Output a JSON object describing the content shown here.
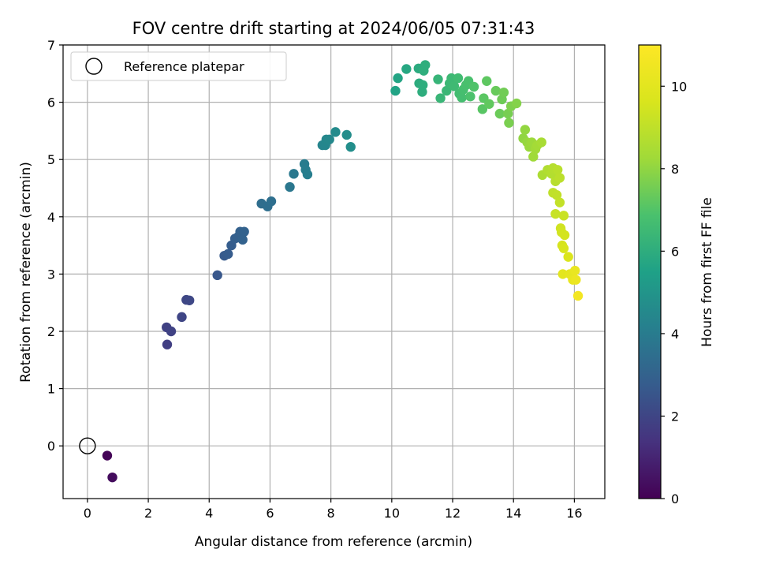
{
  "chart_data": {
    "type": "scatter",
    "title": "FOV centre drift starting at 2024/06/05 07:31:43",
    "xlabel": "Angular distance from reference (arcmin)",
    "ylabel": "Rotation from reference (arcmin)",
    "xlim": [
      -0.8,
      17.0
    ],
    "ylim": [
      -0.92,
      7.0
    ],
    "xticks": [
      0,
      2,
      4,
      6,
      8,
      10,
      12,
      14,
      16
    ],
    "yticks": [
      0,
      1,
      2,
      3,
      4,
      5,
      6,
      7
    ],
    "grid": true,
    "legend": {
      "placement": "top-left",
      "entries": [
        "Reference platepar"
      ]
    },
    "reference_point": {
      "x": 0,
      "y": 0,
      "label": "Reference platepar"
    },
    "colorbar": {
      "label": "Hours from first FF file",
      "range": [
        0,
        11
      ],
      "ticks": [
        0,
        2,
        4,
        6,
        8,
        10
      ],
      "colormap": "viridis"
    },
    "points": [
      {
        "x": 0.65,
        "y": -0.17,
        "c": 0.1
      },
      {
        "x": 0.82,
        "y": -0.55,
        "c": 0.3
      },
      {
        "x": 2.62,
        "y": 1.77,
        "c": 1.8
      },
      {
        "x": 2.6,
        "y": 2.07,
        "c": 1.85
      },
      {
        "x": 2.75,
        "y": 2.0,
        "c": 1.9
      },
      {
        "x": 3.1,
        "y": 2.25,
        "c": 2.0
      },
      {
        "x": 3.25,
        "y": 2.55,
        "c": 2.05
      },
      {
        "x": 3.35,
        "y": 2.54,
        "c": 2.1
      },
      {
        "x": 4.27,
        "y": 2.98,
        "c": 2.6
      },
      {
        "x": 4.5,
        "y": 3.32,
        "c": 2.7
      },
      {
        "x": 4.62,
        "y": 3.35,
        "c": 2.75
      },
      {
        "x": 4.73,
        "y": 3.5,
        "c": 2.8
      },
      {
        "x": 4.85,
        "y": 3.62,
        "c": 2.85
      },
      {
        "x": 4.95,
        "y": 3.65,
        "c": 2.9
      },
      {
        "x": 5.02,
        "y": 3.74,
        "c": 2.95
      },
      {
        "x": 5.15,
        "y": 3.74,
        "c": 3.0
      },
      {
        "x": 5.1,
        "y": 3.6,
        "c": 3.0
      },
      {
        "x": 5.72,
        "y": 4.23,
        "c": 3.4
      },
      {
        "x": 5.92,
        "y": 4.18,
        "c": 3.45
      },
      {
        "x": 6.04,
        "y": 4.27,
        "c": 3.5
      },
      {
        "x": 6.65,
        "y": 4.52,
        "c": 3.8
      },
      {
        "x": 6.78,
        "y": 4.75,
        "c": 3.85
      },
      {
        "x": 7.13,
        "y": 4.92,
        "c": 4.0
      },
      {
        "x": 7.17,
        "y": 4.82,
        "c": 4.05
      },
      {
        "x": 7.23,
        "y": 4.74,
        "c": 4.1
      },
      {
        "x": 7.72,
        "y": 5.25,
        "c": 4.35
      },
      {
        "x": 7.82,
        "y": 5.25,
        "c": 4.4
      },
      {
        "x": 7.85,
        "y": 5.35,
        "c": 4.45
      },
      {
        "x": 7.95,
        "y": 5.35,
        "c": 4.5
      },
      {
        "x": 8.15,
        "y": 5.48,
        "c": 4.6
      },
      {
        "x": 8.52,
        "y": 5.43,
        "c": 4.7
      },
      {
        "x": 8.65,
        "y": 5.22,
        "c": 4.75
      },
      {
        "x": 10.12,
        "y": 6.2,
        "c": 5.6
      },
      {
        "x": 10.2,
        "y": 6.42,
        "c": 5.65
      },
      {
        "x": 10.48,
        "y": 6.58,
        "c": 5.75
      },
      {
        "x": 10.88,
        "y": 6.59,
        "c": 5.9
      },
      {
        "x": 10.9,
        "y": 6.33,
        "c": 5.95
      },
      {
        "x": 11.0,
        "y": 6.18,
        "c": 6.0
      },
      {
        "x": 11.02,
        "y": 6.3,
        "c": 6.0
      },
      {
        "x": 11.05,
        "y": 6.55,
        "c": 6.05
      },
      {
        "x": 11.1,
        "y": 6.65,
        "c": 6.05
      },
      {
        "x": 11.52,
        "y": 6.4,
        "c": 6.3
      },
      {
        "x": 11.6,
        "y": 6.07,
        "c": 6.35
      },
      {
        "x": 11.8,
        "y": 6.2,
        "c": 6.4
      },
      {
        "x": 11.9,
        "y": 6.33,
        "c": 6.45
      },
      {
        "x": 11.96,
        "y": 6.42,
        "c": 6.5
      },
      {
        "x": 12.05,
        "y": 6.28,
        "c": 6.55
      },
      {
        "x": 12.18,
        "y": 6.42,
        "c": 6.6
      },
      {
        "x": 12.22,
        "y": 6.15,
        "c": 6.65
      },
      {
        "x": 12.3,
        "y": 6.08,
        "c": 6.7
      },
      {
        "x": 12.35,
        "y": 6.22,
        "c": 6.75
      },
      {
        "x": 12.44,
        "y": 6.3,
        "c": 6.8
      },
      {
        "x": 12.52,
        "y": 6.37,
        "c": 6.85
      },
      {
        "x": 12.58,
        "y": 6.1,
        "c": 6.9
      },
      {
        "x": 12.7,
        "y": 6.27,
        "c": 6.95
      },
      {
        "x": 12.98,
        "y": 5.88,
        "c": 7.1
      },
      {
        "x": 13.02,
        "y": 6.07,
        "c": 7.15
      },
      {
        "x": 13.12,
        "y": 6.37,
        "c": 7.2
      },
      {
        "x": 13.2,
        "y": 5.97,
        "c": 7.25
      },
      {
        "x": 13.42,
        "y": 6.2,
        "c": 7.35
      },
      {
        "x": 13.55,
        "y": 5.8,
        "c": 7.4
      },
      {
        "x": 13.62,
        "y": 6.05,
        "c": 7.45
      },
      {
        "x": 13.68,
        "y": 6.17,
        "c": 7.5
      },
      {
        "x": 13.82,
        "y": 5.8,
        "c": 7.6
      },
      {
        "x": 13.85,
        "y": 5.64,
        "c": 7.65
      },
      {
        "x": 13.92,
        "y": 5.93,
        "c": 7.7
      },
      {
        "x": 14.1,
        "y": 5.98,
        "c": 7.8
      },
      {
        "x": 14.32,
        "y": 5.37,
        "c": 8.0
      },
      {
        "x": 14.38,
        "y": 5.52,
        "c": 8.05
      },
      {
        "x": 14.45,
        "y": 5.3,
        "c": 8.1
      },
      {
        "x": 14.52,
        "y": 5.22,
        "c": 8.15
      },
      {
        "x": 14.6,
        "y": 5.3,
        "c": 8.2
      },
      {
        "x": 14.65,
        "y": 5.05,
        "c": 8.25
      },
      {
        "x": 14.72,
        "y": 5.18,
        "c": 8.3
      },
      {
        "x": 14.78,
        "y": 5.25,
        "c": 8.35
      },
      {
        "x": 14.92,
        "y": 5.3,
        "c": 8.45
      },
      {
        "x": 14.95,
        "y": 4.73,
        "c": 8.55
      },
      {
        "x": 15.12,
        "y": 4.82,
        "c": 8.65
      },
      {
        "x": 15.25,
        "y": 4.75,
        "c": 8.7
      },
      {
        "x": 15.3,
        "y": 4.85,
        "c": 8.75
      },
      {
        "x": 15.38,
        "y": 4.62,
        "c": 8.8
      },
      {
        "x": 15.45,
        "y": 4.82,
        "c": 8.85
      },
      {
        "x": 15.52,
        "y": 4.68,
        "c": 8.9
      },
      {
        "x": 15.3,
        "y": 4.42,
        "c": 9.0
      },
      {
        "x": 15.42,
        "y": 4.38,
        "c": 9.05
      },
      {
        "x": 15.52,
        "y": 4.25,
        "c": 9.1
      },
      {
        "x": 15.38,
        "y": 4.05,
        "c": 9.2
      },
      {
        "x": 15.65,
        "y": 4.02,
        "c": 9.25
      },
      {
        "x": 15.55,
        "y": 3.8,
        "c": 9.4
      },
      {
        "x": 15.58,
        "y": 3.73,
        "c": 9.45
      },
      {
        "x": 15.68,
        "y": 3.68,
        "c": 9.5
      },
      {
        "x": 15.6,
        "y": 3.5,
        "c": 9.55
      },
      {
        "x": 15.65,
        "y": 3.45,
        "c": 9.6
      },
      {
        "x": 15.8,
        "y": 3.3,
        "c": 9.7
      },
      {
        "x": 15.62,
        "y": 3.0,
        "c": 10.0
      },
      {
        "x": 15.85,
        "y": 3.0,
        "c": 10.1
      },
      {
        "x": 15.95,
        "y": 2.9,
        "c": 10.2
      },
      {
        "x": 16.02,
        "y": 3.06,
        "c": 10.25
      },
      {
        "x": 16.05,
        "y": 2.9,
        "c": 10.35
      },
      {
        "x": 16.12,
        "y": 2.62,
        "c": 10.6
      }
    ]
  }
}
